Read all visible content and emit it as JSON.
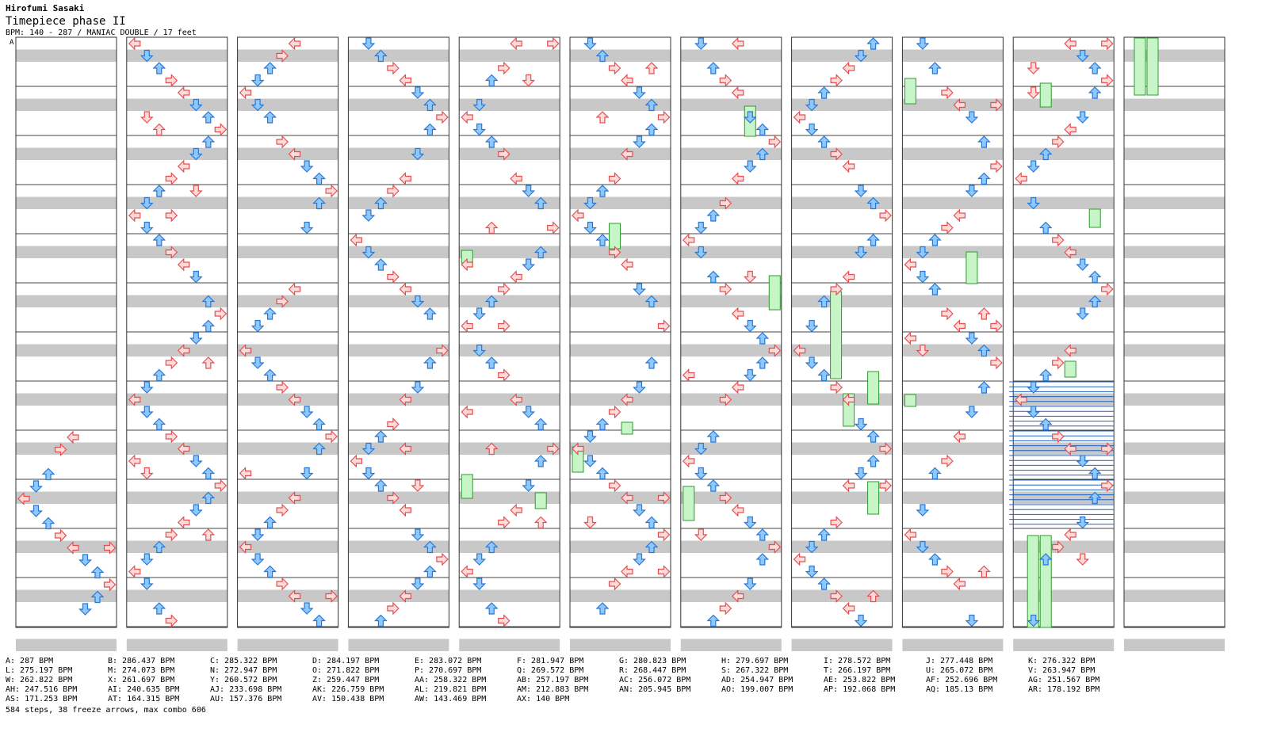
{
  "header": {
    "author": "Hirofumi Sasaki",
    "song": "Timepiece phase II",
    "info": "BPM: 140 - 287 / MANIAC DOUBLE / 17 feet"
  },
  "first_label": "A",
  "colors": {
    "stripe": "#c8c8c8",
    "red_fill": "#ffdada",
    "red_stroke": "#e05050",
    "blue_fill": "#8ec8ff",
    "blue_stroke": "#2a78d0",
    "freeze_fill": "#c8f5c8",
    "freeze_stroke": "#2f9a2f",
    "shock": "#2060c0"
  },
  "bpm_columns": [
    [
      "A: 287 BPM",
      "L: 275.197 BPM",
      "W: 262.822 BPM",
      "AH: 247.516 BPM",
      "AS: 171.253 BPM"
    ],
    [
      "B: 286.437 BPM",
      "M: 274.073 BPM",
      "X: 261.697 BPM",
      "AI: 240.635 BPM",
      "AT: 164.315 BPM"
    ],
    [
      "C: 285.322 BPM",
      "N: 272.947 BPM",
      "Y: 260.572 BPM",
      "AJ: 233.698 BPM",
      "AU: 157.376 BPM"
    ],
    [
      "D: 284.197 BPM",
      "O: 271.822 BPM",
      "Z: 259.447 BPM",
      "AK: 226.759 BPM",
      "AV: 150.438 BPM"
    ],
    [
      "E: 283.072 BPM",
      "P: 270.697 BPM",
      "AA: 258.322 BPM",
      "AL: 219.821 BPM",
      "AW: 143.469 BPM"
    ],
    [
      "F: 281.947 BPM",
      "Q: 269.572 BPM",
      "AB: 257.197 BPM",
      "AM: 212.883 BPM",
      "AX: 140 BPM"
    ],
    [
      "G: 280.823 BPM",
      "R: 268.447 BPM",
      "AC: 256.072 BPM",
      "AN: 205.945 BPM"
    ],
    [
      "H: 279.697 BPM",
      "S: 267.322 BPM",
      "AD: 254.947 BPM",
      "AO: 199.007 BPM"
    ],
    [
      "I: 278.572 BPM",
      "T: 266.197 BPM",
      "AE: 253.822 BPM",
      "AP: 192.068 BPM"
    ],
    [
      "J: 277.448 BPM",
      "U: 265.072 BPM",
      "AF: 252.696 BPM",
      "AQ: 185.13 BPM"
    ],
    [
      "K: 276.322 BPM",
      "V: 263.947 BPM",
      "AG: 251.567 BPM",
      "AR: 178.192 BPM"
    ]
  ],
  "summary": "584 steps, 38 freeze arrows, max combo 606"
}
